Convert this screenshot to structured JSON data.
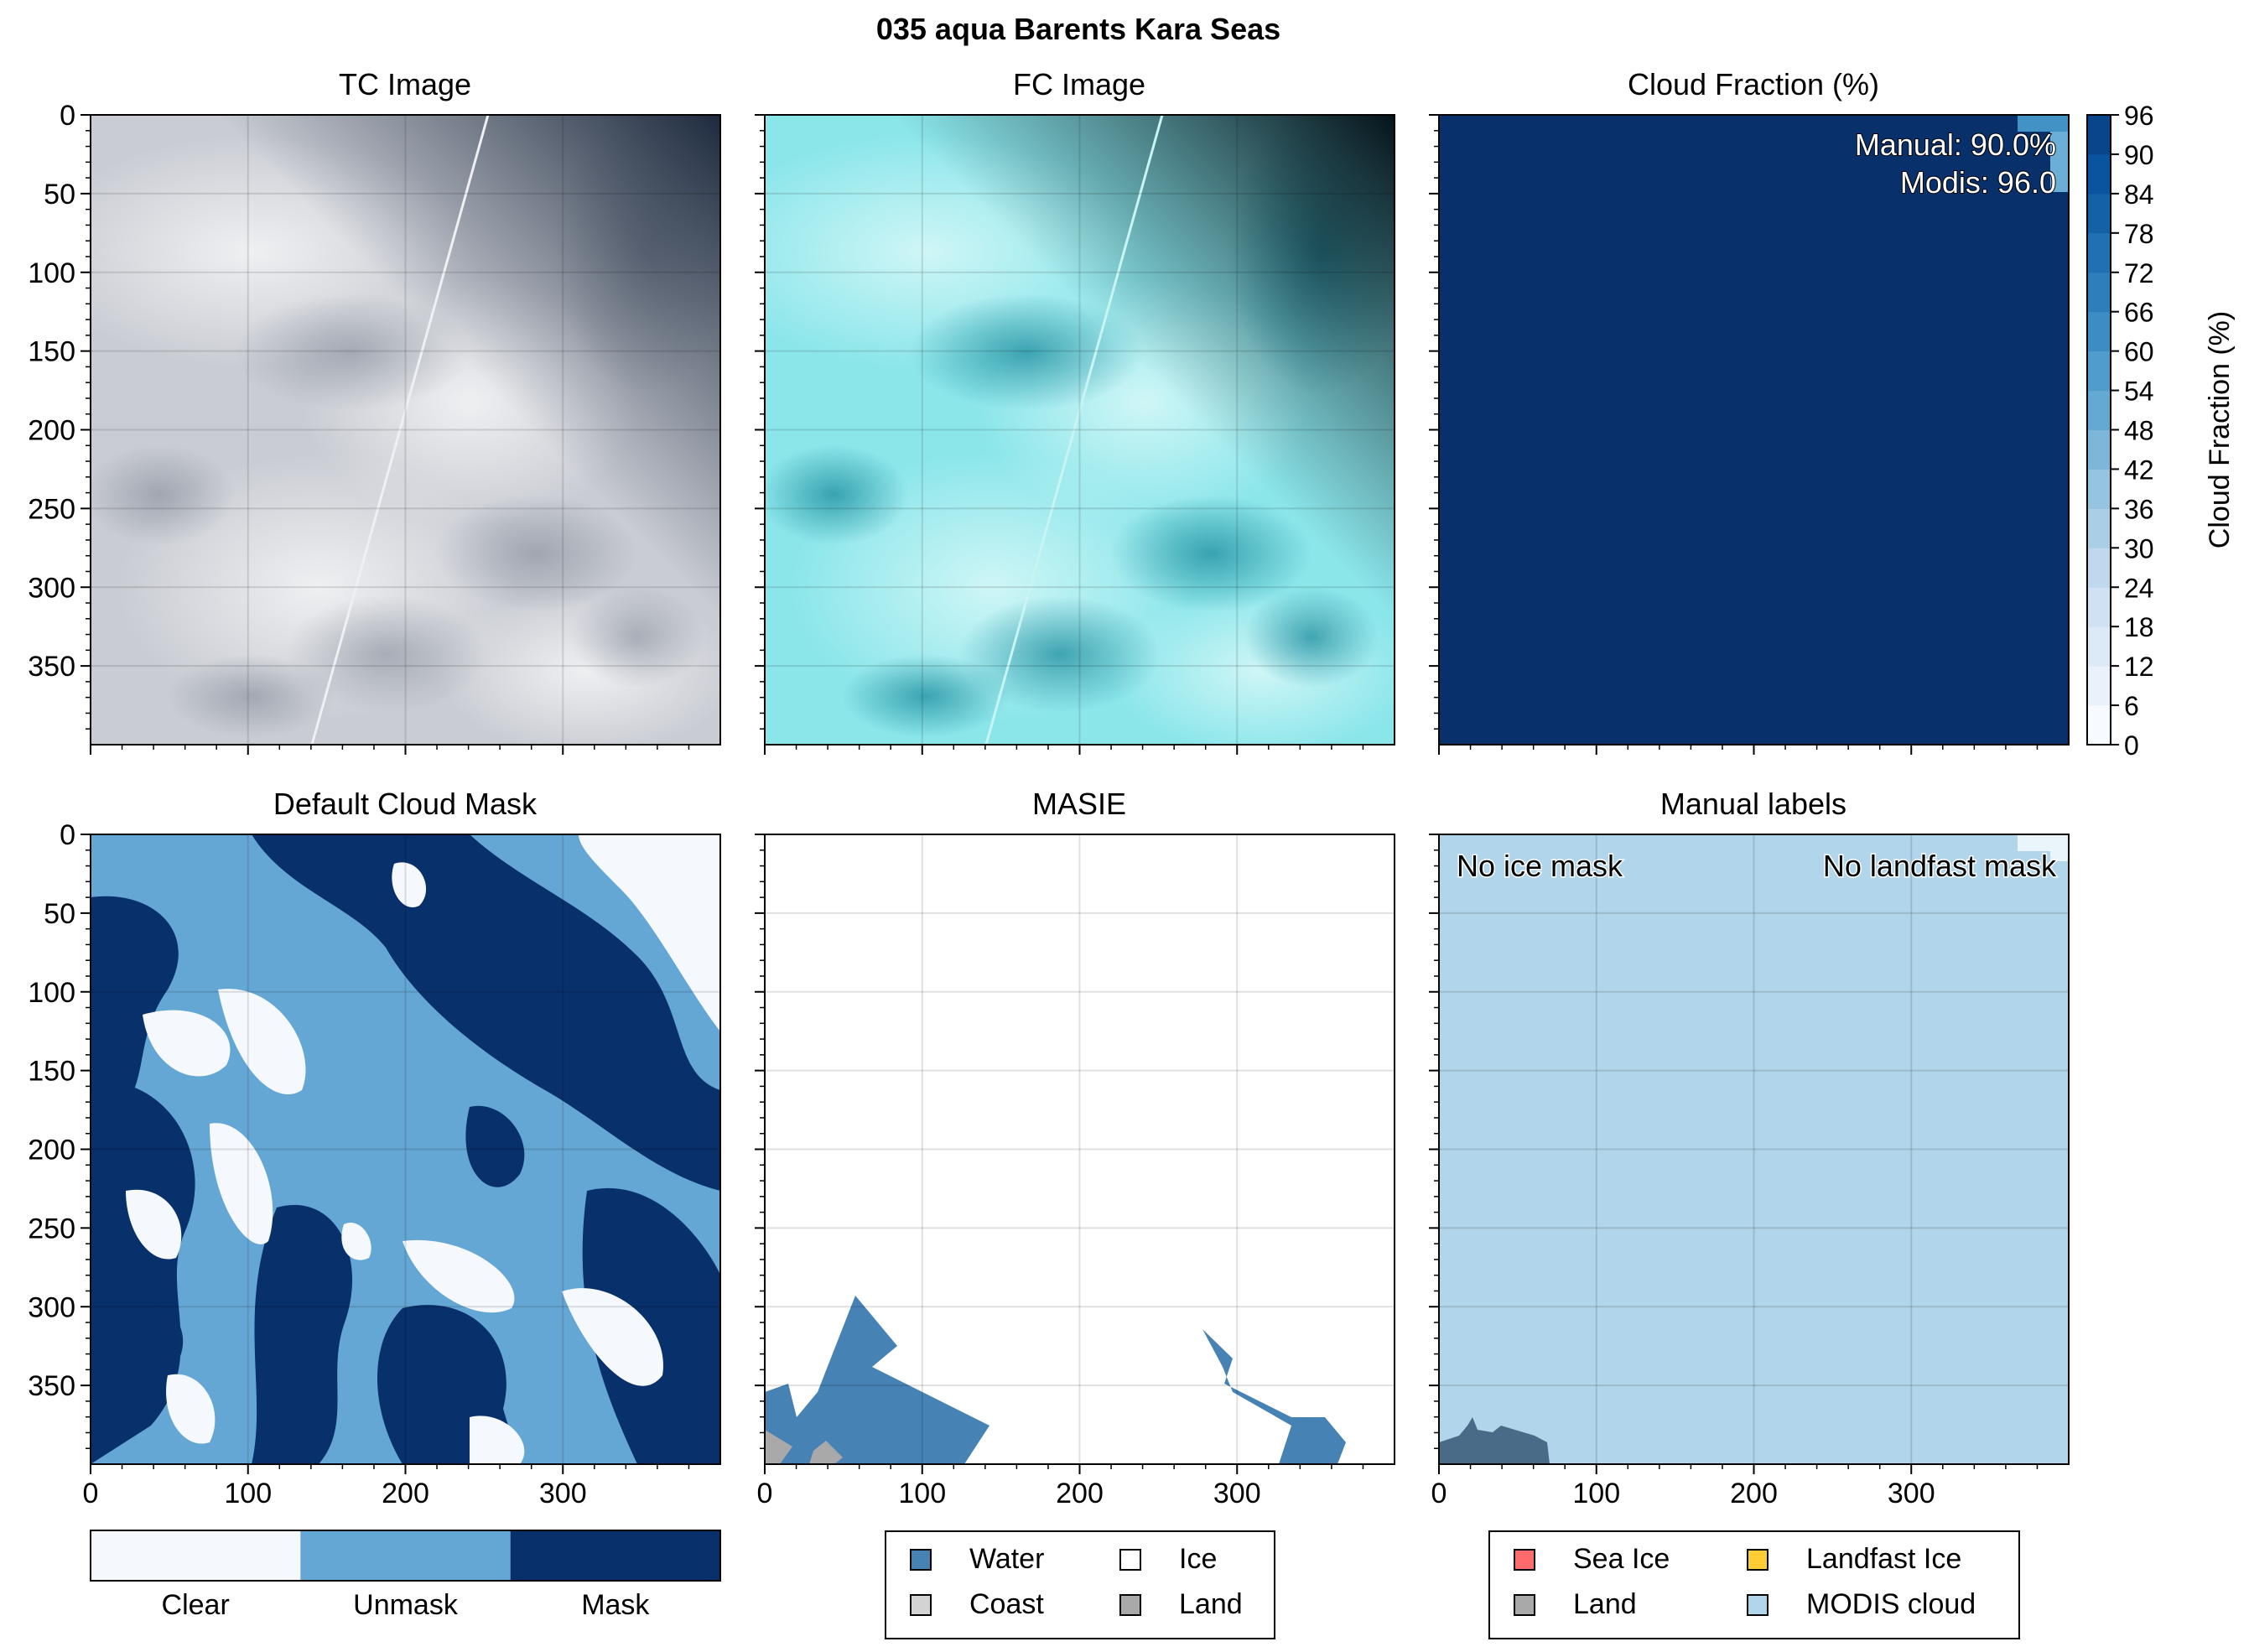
{
  "figure": {
    "title": "035 aqua Barents Kara Seas"
  },
  "panels": {
    "tc": {
      "title": "TC Image"
    },
    "fc": {
      "title": "FC Image"
    },
    "cf": {
      "title": "Cloud Fraction (%)",
      "annotation_manual": "Manual: 90.0%",
      "annotation_modis": "Modis: 96.0",
      "colorbar_label": "Cloud Fraction (%)",
      "colorbar_ticks": [
        "0",
        "6",
        "12",
        "18",
        "24",
        "30",
        "36",
        "42",
        "48",
        "54",
        "60",
        "66",
        "72",
        "78",
        "84",
        "90",
        "96"
      ]
    },
    "dcm": {
      "title": "Default Cloud Mask",
      "legend": [
        {
          "label": "Clear",
          "color": "#f5f9fe"
        },
        {
          "label": "Unmask",
          "color": "#65a7d4"
        },
        {
          "label": "Mask",
          "color": "#08306b"
        }
      ]
    },
    "masie": {
      "title": "MASIE",
      "legend": [
        {
          "label": "Water",
          "color": "#4682b4"
        },
        {
          "label": "Ice",
          "color": "#ffffff"
        },
        {
          "label": "Coast",
          "color": "#d3d3d3"
        },
        {
          "label": "Land",
          "color": "#a9a9a9"
        }
      ]
    },
    "manual": {
      "title": "Manual labels",
      "note_left": "No ice mask",
      "note_right": "No landfast mask",
      "legend": [
        {
          "label": "Sea Ice",
          "color": "#ff6b6b"
        },
        {
          "label": "Landfast Ice",
          "color": "#ffcc33"
        },
        {
          "label": "Land",
          "color": "#a9a9a9"
        },
        {
          "label": "MODIS cloud",
          "color": "#b1d5ea"
        }
      ]
    }
  },
  "axes": {
    "y_ticks": [
      "0",
      "50",
      "100",
      "150",
      "200",
      "250",
      "300",
      "350"
    ],
    "x_ticks": [
      "0",
      "100",
      "200",
      "300"
    ]
  },
  "chart_data": [
    {
      "type": "heatmap",
      "title": "TC Image",
      "xlim": [
        0,
        400
      ],
      "ylim": [
        400,
        0
      ]
    },
    {
      "type": "heatmap",
      "title": "FC Image",
      "xlim": [
        0,
        400
      ],
      "ylim": [
        400,
        0
      ]
    },
    {
      "type": "heatmap",
      "title": "Cloud Fraction (%)",
      "xlim": [
        0,
        400
      ],
      "ylim": [
        400,
        0
      ],
      "colorbar_range": [
        0,
        96
      ],
      "values": {
        "Manual": 90.0,
        "Modis": 96.0
      }
    },
    {
      "type": "heatmap",
      "title": "Default Cloud Mask",
      "xlim": [
        0,
        400
      ],
      "ylim": [
        400,
        0
      ],
      "categories": [
        "Clear",
        "Unmask",
        "Mask"
      ]
    },
    {
      "type": "heatmap",
      "title": "MASIE",
      "xlim": [
        0,
        400
      ],
      "ylim": [
        400,
        0
      ],
      "categories": [
        "Water",
        "Ice",
        "Coast",
        "Land"
      ]
    },
    {
      "type": "heatmap",
      "title": "Manual labels",
      "xlim": [
        0,
        400
      ],
      "ylim": [
        400,
        0
      ],
      "categories": [
        "Sea Ice",
        "Landfast Ice",
        "Land",
        "MODIS cloud"
      ]
    }
  ]
}
